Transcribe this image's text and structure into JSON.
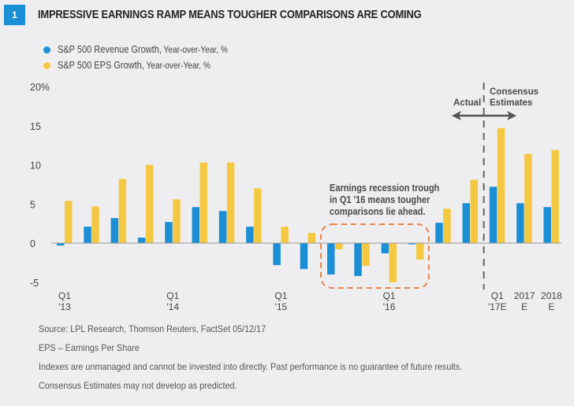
{
  "figure": {
    "number": "1",
    "title": "IMPRESSIVE EARNINGS RAMP MEANS TOUGHER COMPARISONS ARE COMING"
  },
  "legend": [
    {
      "label": "S&P 500 Revenue Growth,",
      "sublabel": " Year-over-Year, %",
      "color": "#1a8fd6"
    },
    {
      "label": "S&P 500 EPS Growth,",
      "sublabel": " Year-over-Year, %",
      "color": "#f5c842"
    }
  ],
  "annotations": {
    "actual": "Actual",
    "consensus_line1": "Consensus",
    "consensus_line2": "Estimates",
    "trough_line1": "Earnings recession trough",
    "trough_line2": "in Q1 '16 means tougher",
    "trough_line3": "comparisons lie ahead.",
    "highlight_color": "#e8844a"
  },
  "footnotes": [
    "Source: LPL Research, Thomson Reuters, FactSet   05/12/17",
    "EPS – Earnings Per Share",
    "Indexes are unmanaged and cannot be invested into directly. Past performance is no guarantee of future results.",
    "Consensus Estimates may not develop as predicted."
  ],
  "chart_data": {
    "type": "bar",
    "title": "IMPRESSIVE EARNINGS RAMP MEANS TOUGHER COMPARISONS ARE COMING",
    "xlabel": "",
    "ylabel": "%",
    "ylim": [
      -5,
      20
    ],
    "yticks": [
      -5,
      0,
      5,
      10,
      15,
      20
    ],
    "ytick_labels": [
      "-5",
      "0",
      "5",
      "10",
      "15",
      "20%"
    ],
    "grid": false,
    "legend_position": "top-left",
    "categories": [
      "Q1 '13",
      "Q2 '13",
      "Q3 '13",
      "Q4 '13",
      "Q1 '14",
      "Q2 '14",
      "Q3 '14",
      "Q4 '14",
      "Q1 '15",
      "Q2 '15",
      "Q3 '15",
      "Q4 '15",
      "Q1 '16",
      "Q2 '16",
      "Q3 '16",
      "Q4 '16",
      "Q1 '17E",
      "2017E",
      "2018E"
    ],
    "xtick_labels": [
      {
        "index": 0,
        "line1": "Q1",
        "line2": "'13"
      },
      {
        "index": 4,
        "line1": "Q1",
        "line2": "'14"
      },
      {
        "index": 8,
        "line1": "Q1",
        "line2": "'15"
      },
      {
        "index": 12,
        "line1": "Q1",
        "line2": "'16"
      },
      {
        "index": 16,
        "line1": "Q1",
        "line2": "'17E"
      },
      {
        "index": 17,
        "line1": "2017",
        "line2": "E"
      },
      {
        "index": 18,
        "line1": "2018",
        "line2": "E"
      }
    ],
    "series": [
      {
        "name": "S&P 500 Revenue Growth, Year-over-Year, %",
        "color": "#1a8fd6",
        "values": [
          -0.3,
          2.1,
          3.2,
          0.7,
          2.7,
          4.6,
          4.1,
          2.1,
          -2.8,
          -3.3,
          -4.0,
          -4.2,
          -1.3,
          -0.1,
          2.6,
          5.1,
          7.2,
          5.1,
          4.6
        ]
      },
      {
        "name": "S&P 500 EPS Growth, Year-over-Year, %",
        "color": "#f5c842",
        "values": [
          5.4,
          4.7,
          8.2,
          10.0,
          5.6,
          10.3,
          10.3,
          7.0,
          2.1,
          1.3,
          -0.8,
          -2.9,
          -5.0,
          -2.1,
          4.4,
          8.1,
          14.7,
          11.4,
          11.9
        ]
      }
    ],
    "divider_after_index": 15,
    "highlight_range": [
      10,
      13
    ]
  }
}
